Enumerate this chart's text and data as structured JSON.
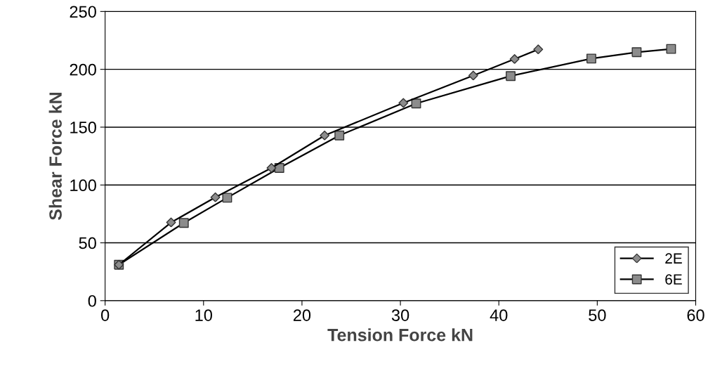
{
  "chart_data": {
    "type": "line",
    "xlabel": "Tension Force kN",
    "ylabel": "Shear Force kN",
    "xlim": [
      0,
      60
    ],
    "xticks": [
      0,
      10,
      20,
      30,
      40,
      50,
      60
    ],
    "ylim": [
      0,
      250
    ],
    "yticks": [
      0,
      50,
      100,
      150,
      200,
      250
    ],
    "grid": "y",
    "legend": "bottom right",
    "line_style": "solid",
    "series": [
      {
        "name": "2E",
        "color": "#000000",
        "marker": "diamond",
        "x": [
          1.4,
          6.7,
          11.2,
          16.9,
          22.3,
          30.3,
          37.4,
          41.6,
          44.0
        ],
        "values": [
          31,
          67.6,
          89.4,
          114.7,
          142.8,
          170.9,
          194.6,
          208.9,
          217.2
        ]
      },
      {
        "name": "6E",
        "color": "#000000",
        "marker": "square",
        "x": [
          1.4,
          8.0,
          12.4,
          17.7,
          23.8,
          31.6,
          41.2,
          49.4,
          54.0,
          57.5
        ],
        "values": [
          31,
          67.2,
          89.0,
          114.7,
          142.8,
          170.5,
          194.2,
          209.3,
          214.8,
          217.6
        ]
      }
    ]
  }
}
